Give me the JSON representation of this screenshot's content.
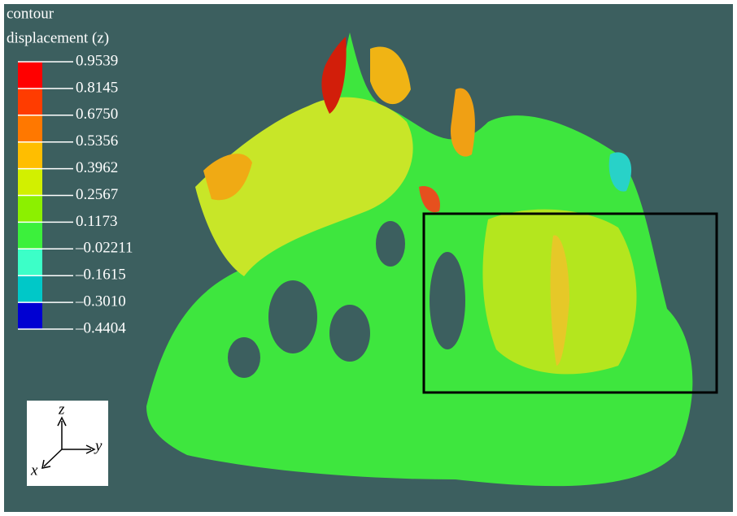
{
  "legend": {
    "title": [
      "contour",
      "displacement (z)"
    ],
    "ticks": [
      "0.9539",
      "0.8145",
      "0.6750",
      "0.5356",
      "0.3962",
      "0.2567",
      "0.1173",
      "–0.02211",
      "–0.1615",
      "–0.3010",
      "–0.4404"
    ],
    "colors": [
      "#ff0000",
      "#ff3c00",
      "#ff7800",
      "#ffbe00",
      "#d2f000",
      "#8cf000",
      "#3cf03c",
      "#3cffc8",
      "#00c8c8",
      "#0000d2"
    ]
  },
  "axes": {
    "z": "z",
    "y": "y",
    "x": "x"
  }
}
